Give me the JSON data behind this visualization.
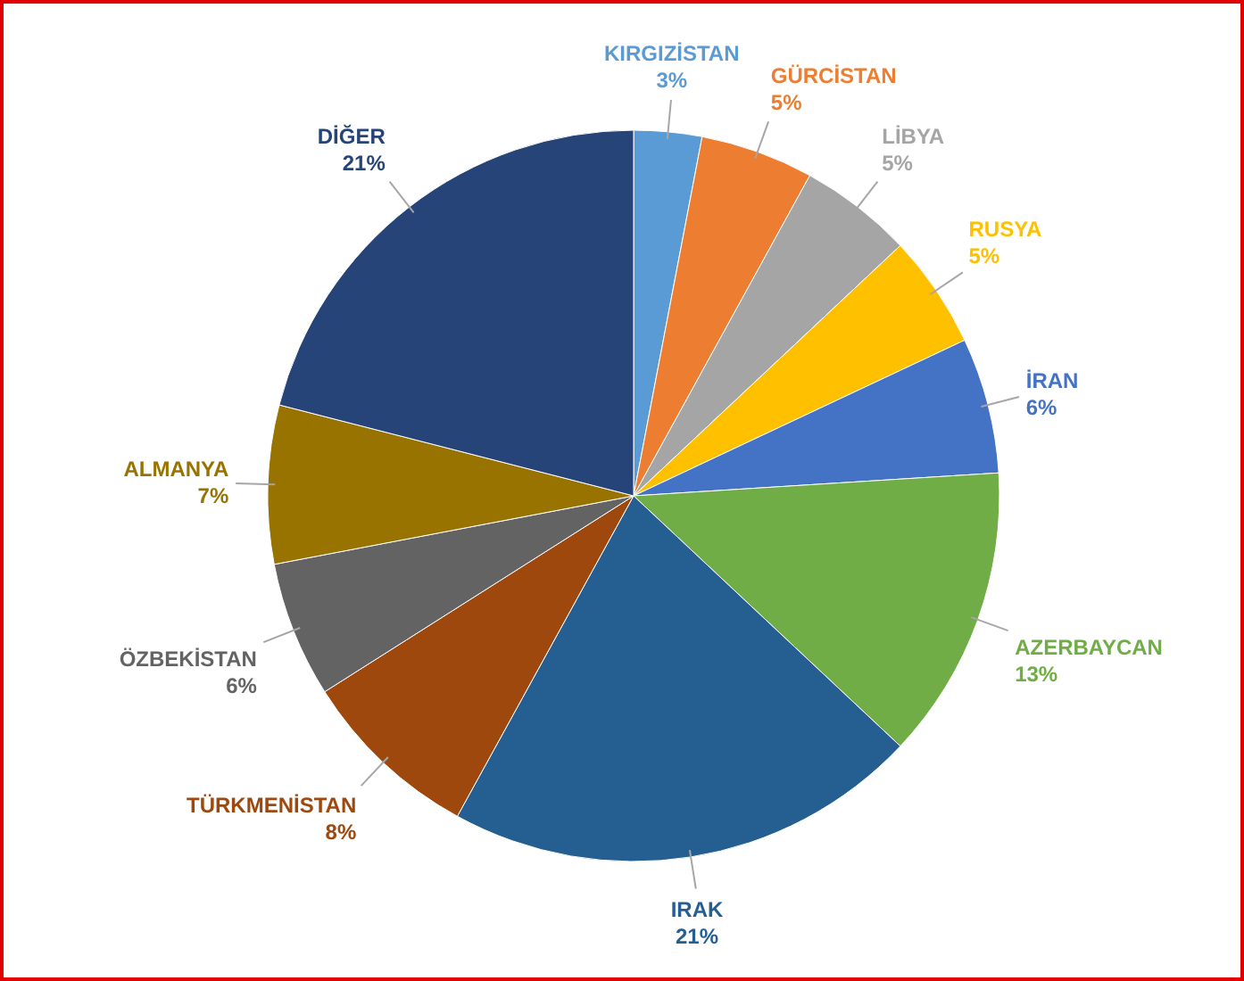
{
  "chart_data": {
    "type": "pie",
    "categories": [
      "KIRGIZİSTAN",
      "GÜRCİSTAN",
      "LİBYA",
      "RUSYA",
      "İRAN",
      "AZERBAYCAN",
      "IRAK",
      "TÜRKMENİSTAN",
      "ÖZBEKİSTAN",
      "ALMANYA",
      "DİĞER"
    ],
    "values": [
      3,
      5,
      5,
      5,
      6,
      13,
      21,
      8,
      6,
      7,
      21
    ],
    "value_labels": [
      "3%",
      "5%",
      "5%",
      "5%",
      "6%",
      "13%",
      "21%",
      "8%",
      "6%",
      "7%",
      "21%"
    ],
    "colors": [
      "#5b9bd5",
      "#ed7d31",
      "#a5a5a5",
      "#ffc000",
      "#4472c4",
      "#70ad47",
      "#255e91",
      "#9e480e",
      "#636363",
      "#997300",
      "#264478"
    ]
  }
}
